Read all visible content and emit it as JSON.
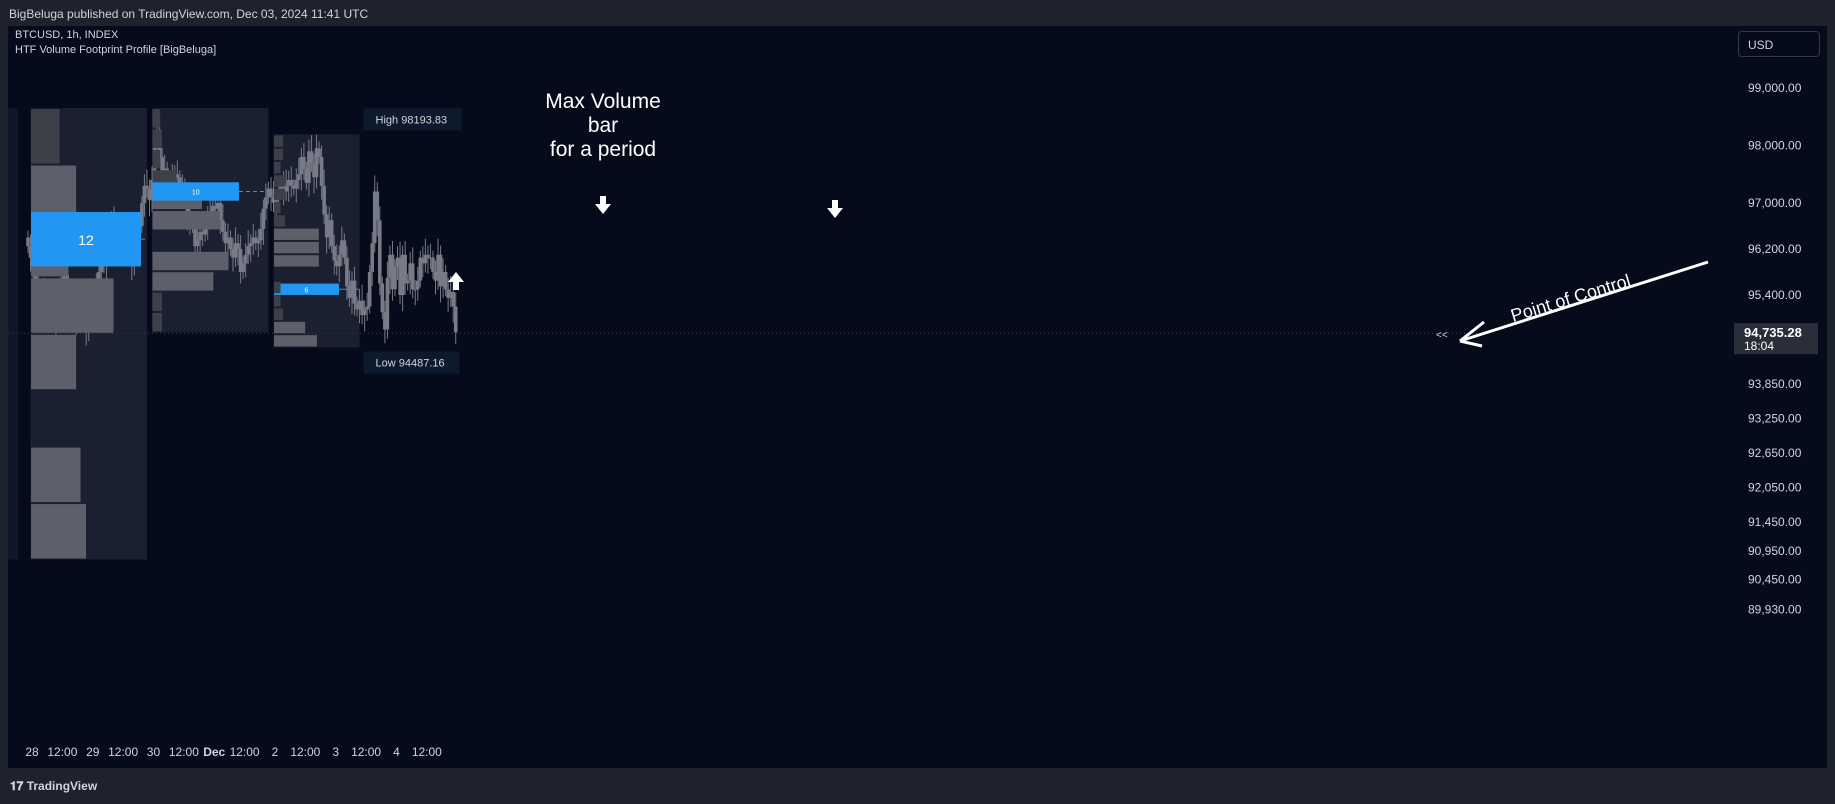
{
  "header": {
    "published": "BigBeluga published on TradingView.com, Dec 03, 2024 11:41 UTC",
    "symbol": "BTCUSD, 1h, INDEX",
    "indicator": "HTF Volume Footprint Profile [BigBeluga]",
    "currency_button": "USD"
  },
  "footer": {
    "brand": "TradingView"
  },
  "colors": {
    "background": "#050b1a",
    "candle": "#787b86",
    "box": "#1b2031",
    "profile_bar": "#5d606b",
    "poc": "#2196f3"
  },
  "chart_data": {
    "type": "candlestick",
    "ylim": [
      89700,
      99500
    ],
    "y_ticks": [
      "99,000.00",
      "98,000.00",
      "97,000.00",
      "96,200.00",
      "95,400.00",
      "93,850.00",
      "93,250.00",
      "92,650.00",
      "92,050.00",
      "91,450.00",
      "90,950.00",
      "90,450.00",
      "89,930.00"
    ],
    "y_tick_values": [
      99000,
      98000,
      97000,
      96200,
      95400,
      93850,
      93250,
      92650,
      92050,
      91450,
      90950,
      90450,
      89930
    ],
    "x_ticks": [
      "28",
      "12:00",
      "29",
      "12:00",
      "30",
      "12:00",
      "Dec",
      "12:00",
      "2",
      "12:00",
      "3",
      "12:00",
      "4",
      "12:00"
    ],
    "x_tick_hours": [
      0,
      12,
      24,
      36,
      48,
      60,
      72,
      84,
      96,
      108,
      120,
      132,
      144,
      156
    ],
    "last_price": "94,735.28",
    "last_price_value": 94735.28,
    "countdown": "18:04",
    "high_label": "High 98193.83",
    "low_label": "Low 94487.16",
    "period_high": 98193.83,
    "period_low": 94487.16,
    "periods": [
      {
        "start_hour": 1,
        "end_hour": 47,
        "top": 98650,
        "bottom": 90800,
        "poc_label": "12",
        "poc_price": 96370,
        "profile": [
          0.26,
          0.41,
          0.34,
          0.75,
          0.41,
          1.0,
          0.45,
          0.5
        ]
      },
      {
        "start_hour": 49,
        "end_hour": 95,
        "top": 98650,
        "bottom": 94750,
        "poc_label": "10",
        "poc_price": 97200,
        "profile": [
          0.08,
          0.1,
          0.08,
          0.25,
          0.52,
          0.71,
          0.91,
          0.8,
          0.64,
          0.1,
          0.1
        ]
      },
      {
        "start_hour": 97,
        "end_hour": 131,
        "top": 98193.83,
        "bottom": 94487.16,
        "poc_label": "6",
        "poc_price": 95500,
        "profile": [
          0.14,
          0.14,
          0.1,
          0.17,
          0.17,
          0.1,
          0.17,
          0.69,
          0.69,
          0.69,
          1.0,
          0.1,
          0.1,
          0.14,
          0.48,
          0.66
        ]
      }
    ],
    "annotations": [
      {
        "text": [
          "Max Volume",
          "bar",
          "for a period"
        ]
      },
      {
        "text": [
          "Point of Control"
        ]
      },
      {
        "text": [
          "<<"
        ]
      }
    ],
    "closes": [
      96250,
      96050,
      95800,
      95650,
      95450,
      95500,
      95350,
      95200,
      95250,
      95000,
      94950,
      95150,
      95400,
      95550,
      95750,
      95550,
      95400,
      95200,
      95050,
      94900,
      95150,
      95100,
      94950,
      94800,
      95050,
      95100,
      95300,
      95500,
      95800,
      96050,
      95900,
      96200,
      96500,
      96700,
      96600,
      96300,
      96150,
      96500,
      96250,
      96100,
      96050,
      95900,
      96250,
      96400,
      96600,
      97000,
      97300,
      97250,
      97050,
      97400,
      98000,
      98150,
      97800,
      97250,
      97600,
      97350,
      97200,
      97400,
      97500,
      97450,
      97300,
      97150,
      97050,
      96800,
      96650,
      96600,
      96250,
      96350,
      96500,
      96450,
      96600,
      96750,
      96850,
      96950,
      96900,
      97000,
      96700,
      96500,
      96300,
      96400,
      96200,
      96050,
      96300,
      96200,
      95800,
      95950,
      96100,
      96250,
      96300,
      96400,
      96300,
      96350,
      96550,
      96900,
      97100,
      97250,
      97100,
      97000,
      97050,
      97200,
      97350,
      97200,
      97300,
      97400,
      97300,
      97250,
      97400,
      97500,
      97800,
      97600,
      97350,
      97900,
      97700,
      97450,
      97950,
      97800,
      97300,
      96800,
      96400,
      96700,
      96250,
      96000,
      95900,
      96100,
      96350,
      96050,
      95550,
      95350,
      95650,
      95250,
      95150,
      95300,
      95050,
      95150,
      95200,
      95800,
      96300,
      97200,
      96700,
      95600,
      95100,
      94800,
      95700,
      96100,
      95500,
      95900,
      96050,
      95400,
      96100,
      95600,
      95650,
      95950,
      95500,
      95500,
      95650,
      96050,
      95950,
      96100,
      96050,
      96050,
      95800,
      95650,
      96100,
      95550,
      95800,
      95500,
      95350,
      95450,
      95200,
      94750
    ]
  }
}
